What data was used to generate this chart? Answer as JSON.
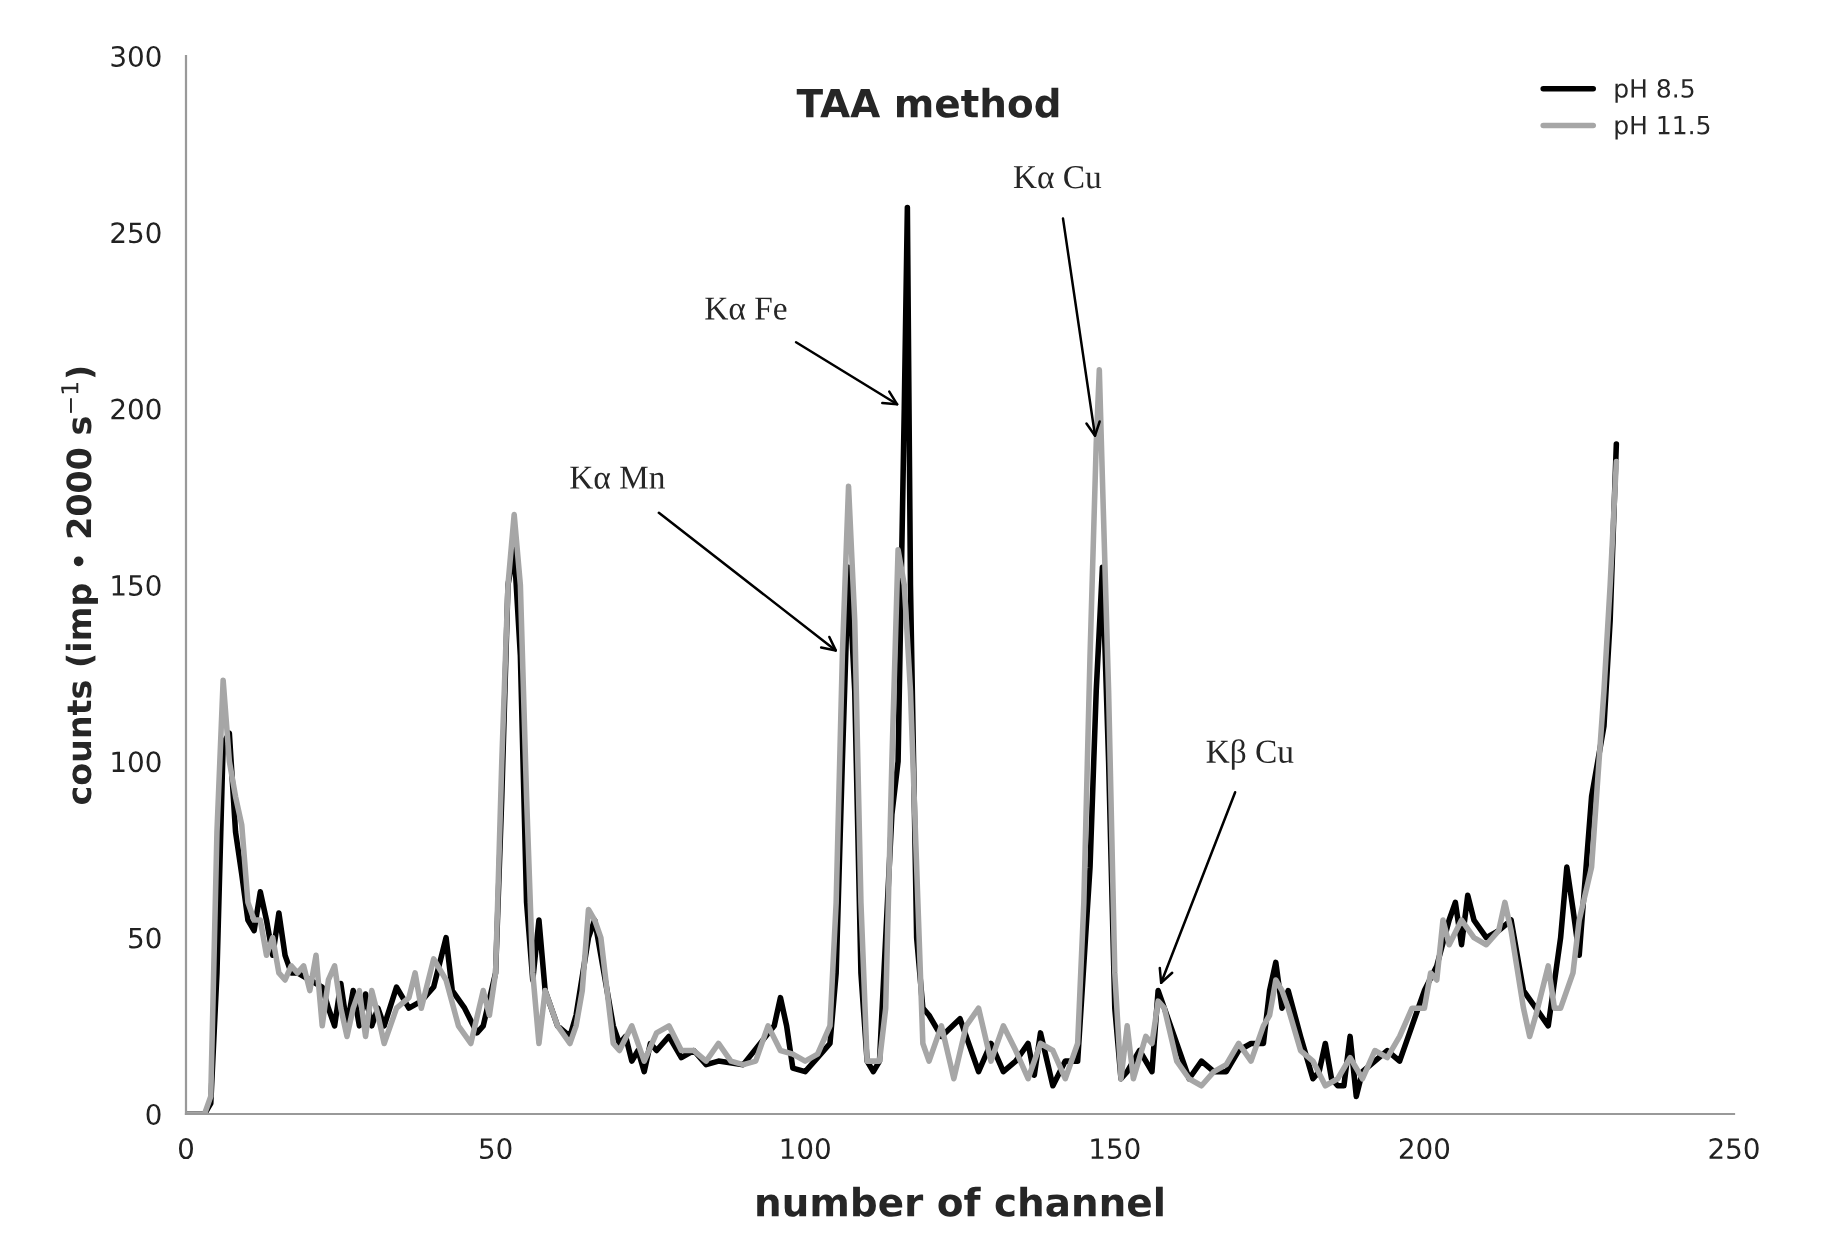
{
  "chart_data": {
    "type": "line",
    "title": "TAA method",
    "xlabel": "number of channel",
    "ylabel": "counts (imp • 2000 s$^{−1}$)",
    "xlim": [
      0,
      250
    ],
    "ylim": [
      0,
      300
    ],
    "xticks": [
      0,
      50,
      100,
      150,
      200,
      250
    ],
    "yticks": [
      0,
      50,
      100,
      150,
      200,
      250,
      300
    ],
    "grid": false,
    "legend": "top right",
    "line_style": "solid",
    "marker": "none",
    "series": [
      {
        "name": "pH 8.5",
        "color": "#000000",
        "x": [
          0,
          3,
          4,
          5,
          6,
          7,
          8,
          9,
          10,
          11,
          12,
          13,
          14,
          15,
          16,
          17,
          18,
          20,
          22,
          23,
          24,
          25,
          26,
          27,
          28,
          29,
          30,
          31,
          32,
          34,
          36,
          38,
          40,
          42,
          43,
          45,
          47,
          48,
          50,
          51,
          52,
          53,
          54,
          55,
          56,
          57,
          58,
          60,
          62,
          63,
          65,
          66,
          67,
          69,
          70,
          71,
          72,
          73,
          74,
          75,
          76,
          78,
          80,
          82,
          84,
          86,
          90,
          95,
          96,
          97,
          98,
          100,
          102,
          104,
          105,
          106,
          107,
          108,
          109,
          110,
          111,
          112,
          113,
          114,
          115,
          116,
          116.5,
          117,
          118,
          119,
          120,
          122,
          125,
          128,
          130,
          132,
          134,
          136,
          137,
          138,
          140,
          142,
          144,
          146,
          147,
          148,
          149,
          150,
          151,
          152,
          154,
          156,
          157,
          158,
          160,
          162,
          164,
          166,
          168,
          170,
          172,
          174,
          175,
          176,
          177,
          178,
          180,
          182,
          183,
          184,
          185,
          186,
          187,
          188,
          189,
          190,
          192,
          194,
          196,
          198,
          200,
          202,
          204,
          205,
          206,
          207,
          208,
          210,
          212,
          214,
          216,
          218,
          220,
          222,
          223,
          224,
          225,
          227,
          229,
          230,
          231
        ],
        "values": [
          0,
          0,
          3,
          40,
          105,
          108,
          80,
          68,
          55,
          52,
          63,
          55,
          45,
          57,
          45,
          40,
          40,
          38,
          36,
          30,
          25,
          37,
          25,
          35,
          25,
          34,
          25,
          30,
          25,
          36,
          30,
          32,
          36,
          50,
          35,
          30,
          23,
          25,
          40,
          90,
          150,
          160,
          130,
          60,
          38,
          55,
          35,
          25,
          22,
          28,
          50,
          55,
          45,
          25,
          20,
          22,
          15,
          18,
          12,
          20,
          18,
          22,
          16,
          18,
          14,
          15,
          14,
          25,
          33,
          25,
          13,
          12,
          16,
          20,
          40,
          100,
          155,
          120,
          40,
          15,
          12,
          15,
          50,
          85,
          100,
          200,
          257,
          150,
          50,
          30,
          28,
          22,
          27,
          12,
          20,
          12,
          15,
          20,
          11,
          23,
          8,
          15,
          15,
          70,
          120,
          155,
          100,
          30,
          10,
          12,
          18,
          12,
          35,
          30,
          20,
          10,
          15,
          12,
          12,
          18,
          20,
          20,
          35,
          43,
          30,
          35,
          22,
          10,
          12,
          20,
          10,
          8,
          8,
          22,
          5,
          12,
          15,
          18,
          15,
          25,
          35,
          42,
          55,
          60,
          48,
          62,
          55,
          50,
          52,
          55,
          35,
          30,
          25,
          50,
          70,
          58,
          45,
          90,
          110,
          140,
          190
        ]
      },
      {
        "name": "pH 11.5",
        "color": "#a6a6a6",
        "x": [
          0,
          3,
          4,
          5,
          6,
          7,
          8,
          9,
          10,
          11,
          12,
          13,
          14,
          15,
          16,
          17,
          18,
          19,
          20,
          21,
          22,
          23,
          24,
          25,
          26,
          27,
          28,
          29,
          30,
          31,
          32,
          34,
          36,
          37,
          38,
          40,
          42,
          44,
          46,
          48,
          49,
          50,
          51,
          52,
          53,
          54,
          55,
          56,
          57,
          58,
          60,
          62,
          63,
          64,
          65,
          66,
          67,
          69,
          70,
          72,
          74,
          76,
          78,
          80,
          82,
          84,
          86,
          88,
          90,
          92,
          94,
          96,
          98,
          100,
          102,
          104,
          105,
          106,
          107,
          108,
          109,
          110,
          112,
          113,
          114,
          115,
          116,
          117,
          118,
          119,
          120,
          122,
          124,
          126,
          128,
          130,
          132,
          134,
          136,
          138,
          140,
          142,
          144,
          145,
          146,
          147,
          147.5,
          148,
          149,
          150,
          151,
          152,
          153,
          155,
          156,
          157,
          158,
          160,
          162,
          164,
          166,
          168,
          170,
          172,
          174,
          175,
          176,
          177,
          178,
          180,
          182,
          184,
          186,
          188,
          190,
          192,
          194,
          196,
          198,
          200,
          201,
          202,
          203,
          204,
          206,
          208,
          210,
          212,
          213,
          214,
          216,
          217,
          218,
          220,
          221,
          222,
          224,
          225,
          227,
          229,
          230,
          231
        ],
        "values": [
          0,
          0,
          5,
          80,
          123,
          100,
          90,
          82,
          60,
          55,
          55,
          45,
          50,
          40,
          38,
          42,
          40,
          42,
          35,
          45,
          25,
          38,
          42,
          30,
          22,
          30,
          35,
          22,
          35,
          28,
          20,
          30,
          33,
          40,
          30,
          44,
          38,
          25,
          20,
          35,
          28,
          40,
          100,
          150,
          170,
          150,
          90,
          40,
          20,
          35,
          25,
          20,
          25,
          35,
          58,
          55,
          50,
          20,
          18,
          25,
          15,
          23,
          25,
          18,
          18,
          15,
          20,
          15,
          14,
          15,
          25,
          18,
          17,
          15,
          17,
          25,
          60,
          130,
          178,
          140,
          60,
          15,
          15,
          30,
          100,
          160,
          150,
          120,
          70,
          20,
          15,
          25,
          10,
          25,
          30,
          15,
          25,
          18,
          10,
          20,
          18,
          10,
          20,
          60,
          130,
          190,
          211,
          180,
          120,
          40,
          10,
          25,
          10,
          22,
          20,
          32,
          30,
          15,
          10,
          8,
          12,
          14,
          20,
          15,
          25,
          28,
          38,
          35,
          30,
          18,
          15,
          8,
          10,
          16,
          10,
          18,
          16,
          22,
          30,
          30,
          40,
          38,
          55,
          48,
          55,
          50,
          48,
          52,
          60,
          52,
          30,
          22,
          28,
          42,
          30,
          30,
          40,
          55,
          70,
          120,
          150,
          185
        ]
      }
    ],
    "annotations": [
      {
        "text": "Kα Mn",
        "x": 106,
        "y": 130
      },
      {
        "text": "Kα Fe",
        "x": 116,
        "y": 200
      },
      {
        "text": "Kα Cu",
        "x": 147,
        "y": 190
      },
      {
        "text": "Kβ Cu",
        "x": 157,
        "y": 35
      }
    ]
  }
}
